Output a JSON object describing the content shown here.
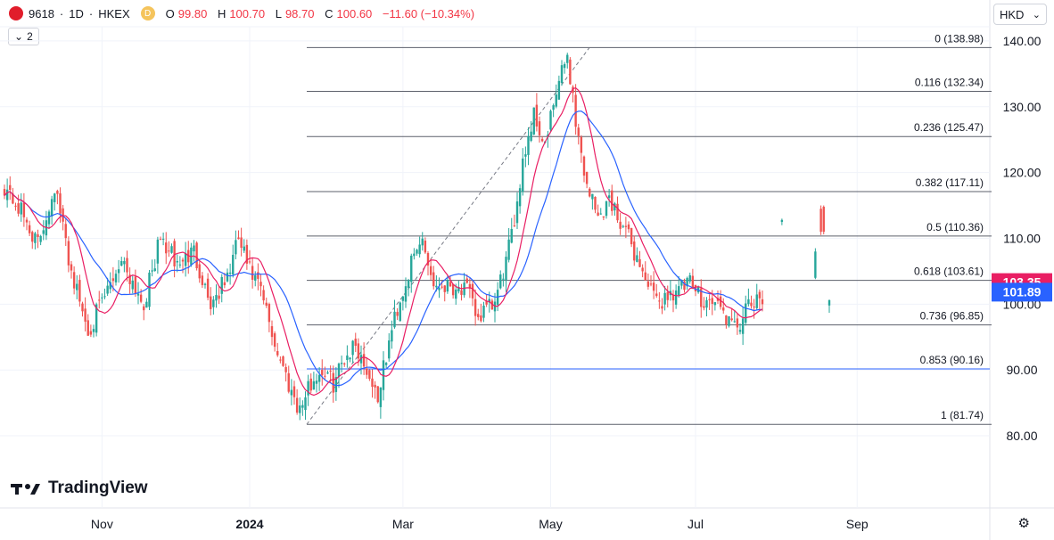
{
  "header": {
    "symbol": "9618",
    "interval": "1D",
    "exchange": "HKEX",
    "badge": "D",
    "open_label": "O",
    "open": "99.80",
    "high_label": "H",
    "high": "100.70",
    "low_label": "L",
    "low": "98.70",
    "close_label": "C",
    "close": "100.60",
    "change": "−11.60 (−10.34%)"
  },
  "indicators_toggle": "2",
  "currency": "HKD",
  "brand": "TradingView",
  "colors": {
    "up": "#26a69a",
    "down": "#ef5350",
    "ma_fast": "#e91e63",
    "ma_slow": "#2962ff",
    "fib": "#5d606b"
  },
  "chart_data": {
    "type": "candlestick",
    "y_axis": {
      "ticks": [
        "80.00",
        "90.00",
        "100.00",
        "110.00",
        "120.00",
        "130.00",
        "140.00"
      ],
      "range": [
        68.5,
        144
      ]
    },
    "x_axis": {
      "ticks": [
        "Nov",
        "2024",
        "Mar",
        "May",
        "Jul",
        "Sep"
      ]
    },
    "price_labels": [
      {
        "value": "103.35",
        "color": "#e91e63"
      },
      {
        "value": "101.89",
        "color": "#2962ff"
      }
    ],
    "fib_levels": [
      {
        "label": "0 (138.98)",
        "value": 138.98
      },
      {
        "label": "0.116 (132.34)",
        "value": 132.34
      },
      {
        "label": "0.236 (125.47)",
        "value": 125.47
      },
      {
        "label": "0.382 (117.11)",
        "value": 117.11
      },
      {
        "label": "0.5 (110.36)",
        "value": 110.36
      },
      {
        "label": "0.618 (103.61)",
        "value": 103.61
      },
      {
        "label": "0.736 (96.85)",
        "value": 96.85
      },
      {
        "label": "0.853 (90.16)",
        "value": 90.16
      },
      {
        "label": "1 (81.74)",
        "value": 81.74
      }
    ],
    "trend_line": {
      "from": {
        "value": 81.74
      },
      "to": {
        "value": 138.98
      }
    },
    "close_waypoints": [
      [
        0,
        118
      ],
      [
        6,
        114
      ],
      [
        12,
        109
      ],
      [
        18,
        118
      ],
      [
        24,
        105
      ],
      [
        30,
        96
      ],
      [
        36,
        101
      ],
      [
        42,
        107
      ],
      [
        50,
        100
      ],
      [
        56,
        110
      ],
      [
        62,
        106
      ],
      [
        68,
        108
      ],
      [
        74,
        100
      ],
      [
        80,
        104
      ],
      [
        84,
        110
      ],
      [
        88,
        105
      ],
      [
        92,
        102
      ],
      [
        97,
        94
      ],
      [
        102,
        88
      ],
      [
        106,
        84
      ],
      [
        110,
        88
      ],
      [
        114,
        90
      ],
      [
        118,
        88
      ],
      [
        122,
        92
      ],
      [
        126,
        94
      ],
      [
        130,
        90
      ],
      [
        134,
        86
      ],
      [
        140,
        98
      ],
      [
        146,
        106
      ],
      [
        150,
        110
      ],
      [
        154,
        103
      ],
      [
        160,
        103
      ],
      [
        166,
        102
      ],
      [
        170,
        98
      ],
      [
        176,
        100
      ],
      [
        182,
        110
      ],
      [
        186,
        122
      ],
      [
        190,
        129
      ],
      [
        194,
        124
      ],
      [
        198,
        132
      ],
      [
        202,
        138
      ],
      [
        205,
        128
      ],
      [
        208,
        120
      ],
      [
        213,
        113
      ],
      [
        217,
        116
      ],
      [
        222,
        112
      ],
      [
        228,
        106
      ],
      [
        234,
        100
      ],
      [
        240,
        102
      ],
      [
        246,
        103
      ],
      [
        250,
        101
      ],
      [
        256,
        100
      ],
      [
        262,
        96
      ],
      [
        268,
        100
      ],
      [
        272,
        100
      ]
    ],
    "gap_bars": [
      {
        "i": 279,
        "o": 112.5,
        "c": 112.8,
        "h": 113,
        "l": 112
      },
      {
        "i": 291,
        "o": 104,
        "c": 108,
        "h": 108.5,
        "l": 103.8
      },
      {
        "i": 293,
        "o": 114.5,
        "c": 111,
        "h": 115,
        "l": 110.5
      },
      {
        "i": 294,
        "o": 114.8,
        "c": 111,
        "h": 115,
        "l": 110.6
      },
      {
        "i": 296,
        "o": 99.8,
        "c": 100.6,
        "h": 100.7,
        "l": 98.7
      }
    ]
  }
}
